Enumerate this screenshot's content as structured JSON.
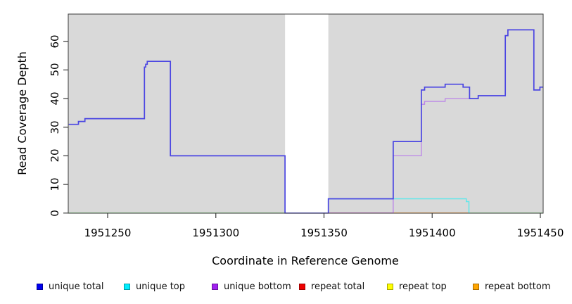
{
  "chart_data": {
    "type": "line",
    "line_style": "step",
    "title": "",
    "xlabel": "Coordinate in Reference Genome",
    "ylabel": "Read Coverage Depth",
    "xlim": [
      1951232,
      1951451
    ],
    "ylim": [
      0,
      69.5
    ],
    "grid": "off",
    "panel_background": "#d9d9d9",
    "gap_region": {
      "from": 1951332,
      "to": 1951352
    },
    "x_ticks": [
      "1951250",
      "1951300",
      "1951350",
      "1951400",
      "1951450"
    ],
    "x_tick_values": [
      1951250,
      1951300,
      1951350,
      1951400,
      1951450
    ],
    "y_ticks": [
      "0",
      "10",
      "20",
      "30",
      "40",
      "50",
      "60"
    ],
    "y_tick_values": [
      0,
      10,
      20,
      30,
      40,
      50,
      60
    ],
    "zero_segments": [
      {
        "name": "zero-line-left-green",
        "color": "#86d886",
        "from": 1951232,
        "to": 1951332
      },
      {
        "name": "zero-line-magenta",
        "color": "#c45ac4",
        "from": 1951352,
        "to": 1951382
      },
      {
        "name": "zero-line-orange",
        "color": "#ff9d2e",
        "from": 1951382,
        "to": 1951417.3
      },
      {
        "name": "zero-line-right-green",
        "color": "#86d886",
        "from": 1951417.3,
        "to": 1951451.3
      }
    ],
    "series": [
      {
        "name": "unique top",
        "color": "#5fe8ea",
        "width": 1.5,
        "start_at_zero": true,
        "end_x": 1951417.3,
        "steps": [
          [
            1951352,
            5
          ],
          [
            1951415.8,
            4
          ],
          [
            1951417.0,
            0
          ]
        ]
      },
      {
        "name": "unique bottom",
        "color": "#bb84e8",
        "width": 1.3,
        "start_at_zero": true,
        "end_x": 1951451.3,
        "steps": [
          [
            1951382,
            20
          ],
          [
            1951395,
            38
          ],
          [
            1951396.5,
            39
          ],
          [
            1951406,
            40
          ],
          [
            1951421.3,
            41
          ],
          [
            1951433.8,
            62
          ],
          [
            1951435,
            64
          ],
          [
            1951447,
            43
          ],
          [
            1951449.8,
            44
          ]
        ]
      },
      {
        "name": "unique total",
        "color": "#4a45e2",
        "width": 1.7,
        "start_at_zero": false,
        "end_x": 1951451.3,
        "steps": [
          [
            1951232,
            31
          ],
          [
            1951236.5,
            32
          ],
          [
            1951239.5,
            33
          ],
          [
            1951267,
            51
          ],
          [
            1951267.6,
            52
          ],
          [
            1951268.3,
            53
          ],
          [
            1951279,
            20
          ],
          [
            1951332,
            0
          ],
          [
            1951352,
            5
          ],
          [
            1951382,
            25
          ],
          [
            1951395,
            43
          ],
          [
            1951396.5,
            44
          ],
          [
            1951406,
            45
          ],
          [
            1951414.3,
            44
          ],
          [
            1951417.3,
            40
          ],
          [
            1951421.3,
            41
          ],
          [
            1951433.8,
            62
          ],
          [
            1951435,
            64
          ],
          [
            1951447,
            43
          ],
          [
            1951449.8,
            44
          ]
        ]
      }
    ],
    "legend": {
      "position": "bottom",
      "items": [
        {
          "label": "unique total",
          "color": "#0000ee"
        },
        {
          "label": "unique top",
          "color": "#00eeff"
        },
        {
          "label": "unique bottom",
          "color": "#a020f0"
        },
        {
          "label": "repeat total",
          "color": "#ee0000"
        },
        {
          "label": "repeat top",
          "color": "#ffff00"
        },
        {
          "label": "repeat bottom",
          "color": "#ffa500"
        }
      ]
    }
  }
}
